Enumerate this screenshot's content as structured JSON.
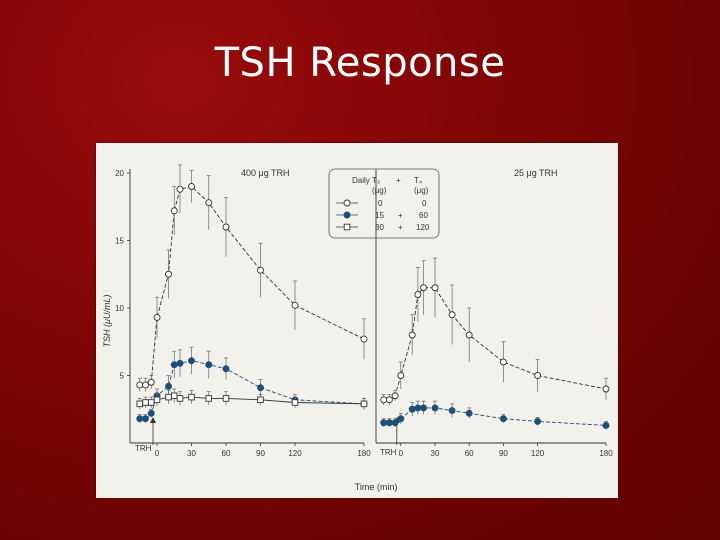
{
  "slide": {
    "title": "TSH Response"
  },
  "chart_data": [
    {
      "type": "line",
      "panel": "left",
      "title": "400 μg TRH",
      "xlabel": "",
      "ylabel": "TSH (μU/mL)",
      "arrow_label": "TRH",
      "xticks": [
        0,
        30,
        60,
        90,
        120,
        180
      ],
      "yticks": [
        5,
        10,
        15,
        20
      ],
      "ylim": [
        0,
        20
      ],
      "xlim": [
        -20,
        180
      ],
      "series": [
        {
          "key": "s0",
          "marker": "open-circle",
          "x": [
            -15,
            -10,
            -5,
            0,
            10,
            15,
            20,
            30,
            45,
            60,
            90,
            120,
            180
          ],
          "y": [
            4.3,
            4.3,
            4.5,
            9.3,
            12.5,
            17.2,
            18.8,
            19.0,
            17.8,
            16.0,
            12.8,
            10.2,
            7.7
          ],
          "err": [
            0.5,
            0.5,
            0.5,
            1.5,
            1.8,
            1.8,
            1.8,
            1.2,
            2.0,
            2.2,
            2.0,
            1.8,
            1.5
          ]
        },
        {
          "key": "s1",
          "marker": "filled-circle",
          "x": [
            -15,
            -10,
            -5,
            0,
            10,
            15,
            20,
            30,
            45,
            60,
            90,
            120,
            180
          ],
          "y": [
            1.8,
            1.8,
            2.2,
            3.5,
            4.2,
            5.8,
            5.9,
            6.1,
            5.8,
            5.5,
            4.1,
            3.2,
            2.9
          ],
          "err": [
            0.3,
            0.3,
            0.3,
            0.5,
            0.8,
            1.0,
            1.0,
            1.0,
            1.0,
            0.8,
            0.6,
            0.4,
            0.4
          ]
        },
        {
          "key": "s2",
          "marker": "open-square",
          "x": [
            -15,
            -10,
            -5,
            0,
            10,
            15,
            20,
            30,
            45,
            60,
            90,
            120,
            180
          ],
          "y": [
            2.9,
            3.0,
            3.0,
            3.2,
            3.4,
            3.5,
            3.3,
            3.4,
            3.3,
            3.3,
            3.2,
            3.0,
            2.9
          ],
          "err": [
            0.4,
            0.4,
            0.4,
            0.5,
            0.5,
            0.5,
            0.5,
            0.5,
            0.5,
            0.5,
            0.4,
            0.4,
            0.4
          ]
        }
      ]
    },
    {
      "type": "line",
      "panel": "right",
      "title": "25 μg TRH",
      "xlabel": "Time (min)",
      "ylabel": "",
      "arrow_label": "TRH",
      "xticks": [
        0,
        30,
        60,
        90,
        120,
        180
      ],
      "ylim": [
        0,
        20
      ],
      "xlim": [
        -20,
        180
      ],
      "series": [
        {
          "key": "s0",
          "marker": "open-circle",
          "x": [
            -15,
            -10,
            -5,
            0,
            10,
            15,
            20,
            30,
            45,
            60,
            90,
            120,
            180
          ],
          "y": [
            3.2,
            3.2,
            3.5,
            5.0,
            8.0,
            11.0,
            11.5,
            11.5,
            9.5,
            8.0,
            6.0,
            5.0,
            4.0
          ],
          "err": [
            0.4,
            0.4,
            0.4,
            1.0,
            1.5,
            2.0,
            2.0,
            2.2,
            2.2,
            2.0,
            1.5,
            1.2,
            0.8
          ]
        },
        {
          "key": "s1",
          "marker": "filled-circle",
          "x": [
            -15,
            -10,
            -5,
            0,
            10,
            15,
            20,
            30,
            45,
            60,
            90,
            120,
            180
          ],
          "y": [
            1.5,
            1.5,
            1.5,
            1.8,
            2.5,
            2.6,
            2.6,
            2.6,
            2.4,
            2.2,
            1.8,
            1.6,
            1.3
          ],
          "err": [
            0.3,
            0.3,
            0.3,
            0.4,
            0.5,
            0.5,
            0.5,
            0.5,
            0.5,
            0.4,
            0.3,
            0.3,
            0.3
          ]
        }
      ]
    }
  ],
  "legend": {
    "header": [
      "Daily T₃",
      "+",
      "T₄"
    ],
    "units": [
      "(μg)",
      "(μg)"
    ],
    "rows": [
      {
        "marker": "open-circle",
        "t3": "0",
        "plus": "",
        "t4": "0"
      },
      {
        "marker": "filled-circle",
        "t3": "15",
        "plus": "+",
        "t4": "60"
      },
      {
        "marker": "open-square",
        "t3": "30",
        "plus": "+",
        "t4": "120"
      }
    ]
  },
  "colors": {
    "slide_bg": "#7d0505",
    "figure_bg": "#f3f1ec",
    "ink": "#333333",
    "filled_marker": "#1e4f7a"
  }
}
